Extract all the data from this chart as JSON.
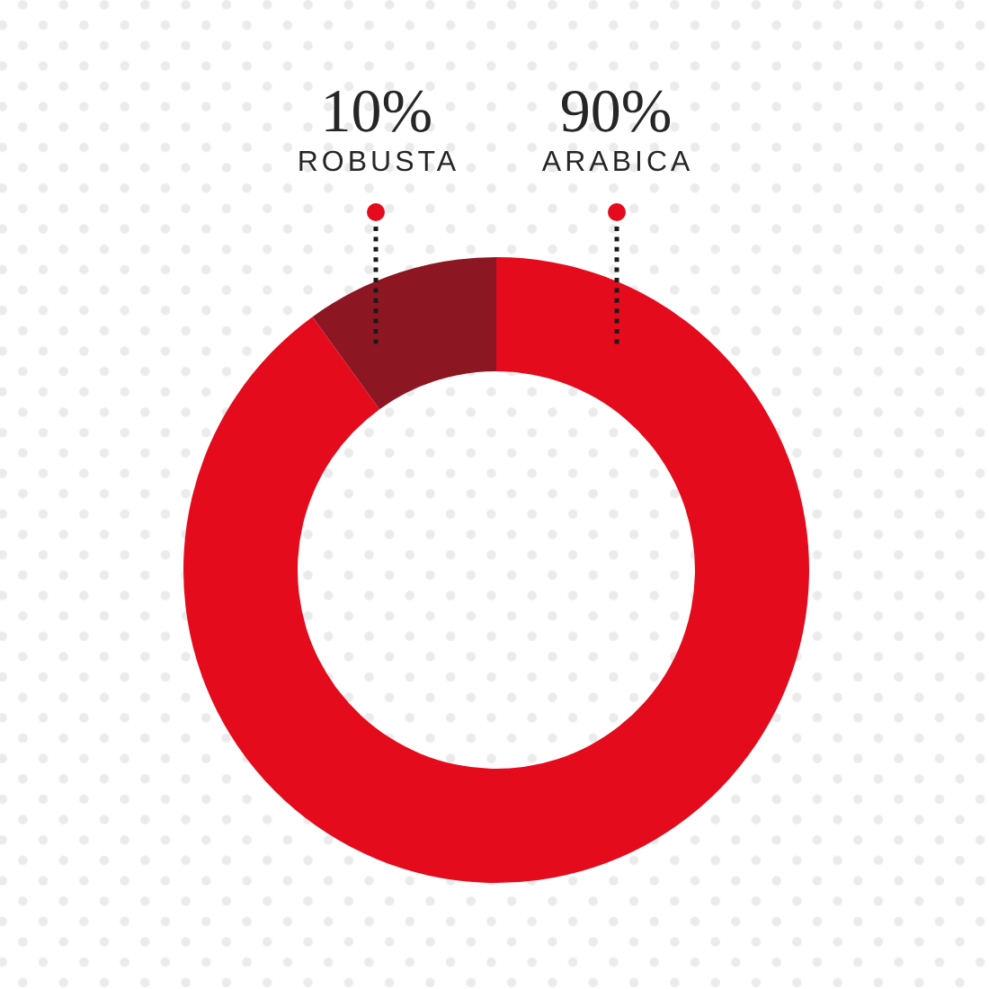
{
  "chart_data": {
    "type": "donut",
    "categories": [
      "ROBUSTA",
      "ARABICA"
    ],
    "values": [
      10,
      90
    ],
    "colors": [
      "#8c1622",
      "#e30b1c"
    ],
    "value_labels": [
      "10%",
      "90%"
    ],
    "legend": false
  }
}
